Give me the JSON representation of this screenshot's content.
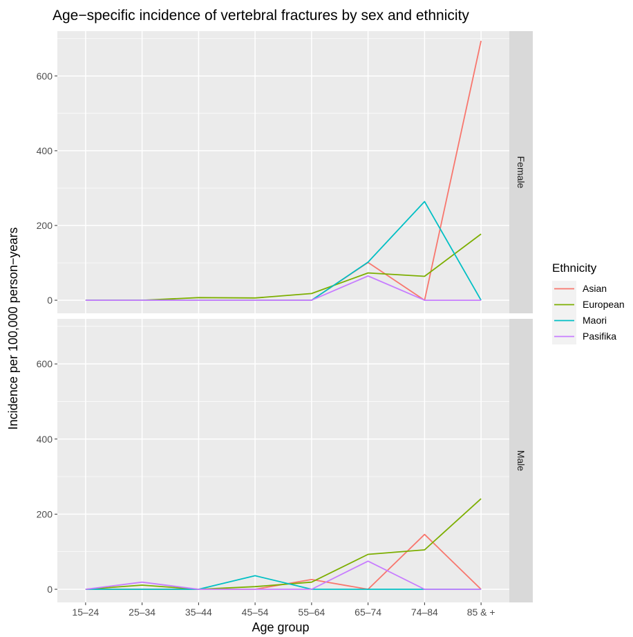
{
  "chart_data": {
    "type": "line",
    "title": "Age−specific incidence of vertebral fractures by sex and ethnicity",
    "xlabel": "Age group",
    "ylabel": "Incidence per 100,000 person−years",
    "categories": [
      "15–24",
      "25–34",
      "35–44",
      "45–54",
      "55–64",
      "65–74",
      "74–84",
      "85 & +"
    ],
    "ylim": [
      -35,
      720
    ],
    "yticks": [
      0,
      200,
      400,
      600
    ],
    "grid": true,
    "legend": {
      "title": "Ethnicity",
      "position": "right"
    },
    "colors": {
      "Asian": "#F8766D",
      "European": "#7CAE00",
      "Maori": "#00BFC4",
      "Pasifika": "#C77CFF",
      "panel_bg": "#EBEBEB",
      "strip_bg": "#D9D9D9",
      "grid": "#FFFFFF"
    },
    "panels": [
      {
        "label": "Female",
        "series": [
          {
            "name": "Asian",
            "values": [
              0,
              0,
              0,
              0,
              0,
              101,
              0,
              694
            ]
          },
          {
            "name": "European",
            "values": [
              0,
              0,
              7,
              6,
              18,
              73,
              64,
              177
            ]
          },
          {
            "name": "Maori",
            "values": [
              0,
              0,
              0,
              0,
              0,
              102,
              264,
              0
            ]
          },
          {
            "name": "Pasifika",
            "values": [
              0,
              0,
              0,
              0,
              0,
              65,
              0,
              0
            ]
          }
        ]
      },
      {
        "label": "Male",
        "series": [
          {
            "name": "Asian",
            "values": [
              0,
              0,
              0,
              0,
              26,
              0,
              146,
              0
            ]
          },
          {
            "name": "European",
            "values": [
              0,
              11,
              0,
              7,
              19,
              93,
              105,
              241
            ]
          },
          {
            "name": "Maori",
            "values": [
              0,
              0,
              0,
              36,
              0,
              0,
              0,
              0
            ]
          },
          {
            "name": "Pasifika",
            "values": [
              0,
              19,
              0,
              0,
              0,
              75,
              0,
              0
            ]
          }
        ]
      }
    ]
  }
}
